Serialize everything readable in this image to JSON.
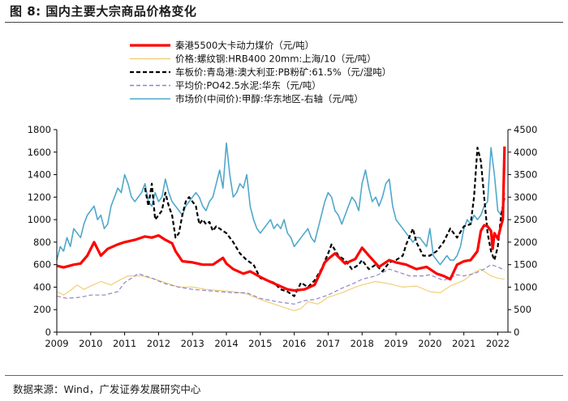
{
  "figure": {
    "title": "图 8:  国内主要大宗商品价格变化",
    "source": "数据来源：Wind，广发证券发展研究中心"
  },
  "chart_data": {
    "type": "line",
    "title": "国内主要大宗商品价格变化",
    "x_ticks": [
      "2009",
      "2010",
      "2011",
      "2012",
      "2013",
      "2014",
      "2015",
      "2016",
      "2017",
      "2018",
      "2019",
      "2020",
      "2021",
      "2022"
    ],
    "x_range": [
      2009.0,
      2022.3
    ],
    "y_left": {
      "range": [
        0,
        1800
      ],
      "ticks": [
        "0",
        "200",
        "400",
        "600",
        "800",
        "1000",
        "1200",
        "1400",
        "1600",
        "1800"
      ]
    },
    "y_right": {
      "range": [
        0,
        4500
      ],
      "ticks": [
        "0",
        "500",
        "1000",
        "1500",
        "2000",
        "2500",
        "3000",
        "3500",
        "4000",
        "4500"
      ]
    },
    "series": [
      {
        "name": "秦港5500大卡动力煤价（元/吨）",
        "color": "#ff0000",
        "style": "solid",
        "width": 3.2,
        "axis": "left",
        "x": [
          2009.0,
          2009.2,
          2009.5,
          2009.7,
          2009.9,
          2010.1,
          2010.3,
          2010.5,
          2010.8,
          2011.0,
          2011.3,
          2011.6,
          2011.8,
          2012.0,
          2012.2,
          2012.4,
          2012.5,
          2012.7,
          2013.0,
          2013.3,
          2013.6,
          2013.9,
          2014.0,
          2014.2,
          2014.5,
          2014.7,
          2015.0,
          2015.2,
          2015.5,
          2015.8,
          2016.0,
          2016.3,
          2016.6,
          2016.8,
          2016.9,
          2017.0,
          2017.2,
          2017.5,
          2017.8,
          2018.0,
          2018.2,
          2018.5,
          2018.8,
          2019.0,
          2019.3,
          2019.6,
          2019.9,
          2020.2,
          2020.4,
          2020.6,
          2020.8,
          2021.0,
          2021.2,
          2021.4,
          2021.5,
          2021.6,
          2021.7,
          2021.8,
          2021.85,
          2021.9,
          2022.0,
          2022.1,
          2022.15,
          2022.2
        ],
        "values": [
          590,
          575,
          600,
          610,
          680,
          800,
          680,
          740,
          780,
          800,
          820,
          850,
          840,
          860,
          820,
          790,
          720,
          630,
          620,
          600,
          600,
          660,
          610,
          560,
          520,
          540,
          490,
          460,
          420,
          380,
          370,
          380,
          420,
          550,
          620,
          650,
          700,
          610,
          650,
          750,
          680,
          580,
          640,
          620,
          600,
          560,
          580,
          520,
          500,
          470,
          600,
          630,
          640,
          720,
          900,
          950,
          940,
          900,
          740,
          880,
          830,
          950,
          1000,
          1650
        ]
      },
      {
        "name": "价格:螺纹钢:HRB400 20mm:上海/10（元/吨）",
        "color": "#f2cf7a",
        "style": "solid",
        "width": 1.2,
        "axis": "left",
        "x": [
          2009.0,
          2009.2,
          2009.4,
          2009.6,
          2009.8,
          2010.0,
          2010.3,
          2010.6,
          2010.9,
          2011.1,
          2011.5,
          2011.9,
          2012.2,
          2012.6,
          2013.0,
          2013.4,
          2013.8,
          2014.2,
          2014.6,
          2015.0,
          2015.5,
          2016.0,
          2016.2,
          2016.4,
          2016.7,
          2017.0,
          2017.4,
          2017.8,
          2018.0,
          2018.4,
          2018.8,
          2019.2,
          2019.6,
          2020.0,
          2020.3,
          2020.6,
          2021.0,
          2021.3,
          2021.5,
          2021.8,
          2022.0,
          2022.2
        ],
        "values": [
          360,
          330,
          370,
          420,
          380,
          410,
          450,
          420,
          470,
          500,
          500,
          470,
          440,
          400,
          400,
          380,
          370,
          360,
          340,
          290,
          240,
          190,
          210,
          270,
          250,
          310,
          350,
          400,
          420,
          450,
          430,
          400,
          410,
          360,
          350,
          410,
          460,
          530,
          560,
          500,
          480,
          470
        ]
      },
      {
        "name": "车板价:青岛港:澳大利亚:PB粉矿:61.5%（元/湿吨）",
        "color": "#000000",
        "style": "dash",
        "width": 2.2,
        "axis": "right",
        "x": [
          2011.6,
          2011.7,
          2011.8,
          2011.9,
          2012.0,
          2012.1,
          2012.2,
          2012.3,
          2012.4,
          2012.5,
          2012.6,
          2012.7,
          2012.8,
          2012.9,
          2013.0,
          2013.1,
          2013.2,
          2013.3,
          2013.4,
          2013.5,
          2013.6,
          2013.7,
          2013.8,
          2013.9,
          2014.0,
          2014.2,
          2014.4,
          2014.6,
          2014.8,
          2015.0,
          2015.2,
          2015.4,
          2015.6,
          2015.8,
          2016.0,
          2016.2,
          2016.4,
          2016.6,
          2016.8,
          2017.0,
          2017.1,
          2017.3,
          2017.5,
          2017.7,
          2017.9,
          2018.0,
          2018.2,
          2018.4,
          2018.6,
          2018.8,
          2019.0,
          2019.2,
          2019.3,
          2019.5,
          2019.6,
          2019.8,
          2020.0,
          2020.2,
          2020.4,
          2020.6,
          2020.8,
          2021.0,
          2021.2,
          2021.3,
          2021.4,
          2021.5,
          2021.6,
          2021.7,
          2021.8,
          2021.9,
          2022.0,
          2022.1,
          2022.2
        ],
        "values": [
          3200,
          2800,
          3300,
          2500,
          2600,
          2700,
          3100,
          2800,
          2600,
          2100,
          2200,
          2600,
          2900,
          3000,
          2900,
          2800,
          2400,
          2500,
          2400,
          2450,
          2250,
          2350,
          2300,
          2250,
          2200,
          2000,
          1750,
          1600,
          1500,
          1200,
          1150,
          1100,
          950,
          900,
          800,
          1100,
          1000,
          1150,
          1400,
          1750,
          1950,
          1700,
          1600,
          1400,
          1500,
          1600,
          1400,
          1500,
          1350,
          1550,
          1600,
          1700,
          1950,
          2300,
          2000,
          1700,
          1700,
          1800,
          2000,
          2300,
          2100,
          2350,
          2400,
          3000,
          4100,
          3800,
          3000,
          2200,
          1800,
          1600,
          1900,
          2600,
          3000
        ]
      },
      {
        "name": "平均价:PO42.5水泥:华东（元/吨）",
        "color": "#8f85c8",
        "style": "dash",
        "width": 1.2,
        "axis": "left",
        "x": [
          2009.0,
          2009.3,
          2009.7,
          2010.0,
          2010.4,
          2010.8,
          2011.0,
          2011.4,
          2011.8,
          2012.2,
          2012.6,
          2013.0,
          2013.4,
          2013.8,
          2014.2,
          2014.6,
          2015.0,
          2015.5,
          2016.0,
          2016.3,
          2016.6,
          2017.0,
          2017.4,
          2017.8,
          2018.0,
          2018.4,
          2018.8,
          2019.0,
          2019.4,
          2019.8,
          2020.0,
          2020.4,
          2020.8,
          2021.0,
          2021.3,
          2021.6,
          2021.8,
          2022.0,
          2022.2
        ],
        "values": [
          320,
          300,
          310,
          330,
          330,
          360,
          440,
          520,
          480,
          430,
          400,
          380,
          370,
          360,
          350,
          350,
          300,
          270,
          250,
          280,
          290,
          330,
          390,
          440,
          470,
          500,
          560,
          540,
          500,
          500,
          510,
          460,
          510,
          500,
          520,
          560,
          600,
          580,
          550
        ]
      },
      {
        "name": "市场价(中间价):甲醇:华东地区-右轴（元/吨）",
        "color": "#4fa8cb",
        "style": "solid",
        "width": 1.6,
        "axis": "right",
        "x": [
          2009.0,
          2009.1,
          2009.2,
          2009.3,
          2009.4,
          2009.5,
          2009.6,
          2009.7,
          2009.8,
          2009.9,
          2010.0,
          2010.1,
          2010.2,
          2010.3,
          2010.4,
          2010.5,
          2010.6,
          2010.7,
          2010.8,
          2010.9,
          2011.0,
          2011.1,
          2011.2,
          2011.3,
          2011.4,
          2011.5,
          2011.6,
          2011.7,
          2011.8,
          2011.9,
          2012.0,
          2012.1,
          2012.2,
          2012.3,
          2012.4,
          2012.5,
          2012.6,
          2012.7,
          2012.8,
          2012.9,
          2013.0,
          2013.1,
          2013.2,
          2013.3,
          2013.4,
          2013.5,
          2013.6,
          2013.7,
          2013.8,
          2013.9,
          2014.0,
          2014.1,
          2014.2,
          2014.3,
          2014.4,
          2014.5,
          2014.6,
          2014.7,
          2014.8,
          2014.9,
          2015.0,
          2015.1,
          2015.2,
          2015.3,
          2015.4,
          2015.5,
          2015.6,
          2015.7,
          2015.8,
          2015.9,
          2016.0,
          2016.1,
          2016.2,
          2016.3,
          2016.4,
          2016.5,
          2016.6,
          2016.7,
          2016.8,
          2016.9,
          2017.0,
          2017.1,
          2017.2,
          2017.3,
          2017.4,
          2017.5,
          2017.6,
          2017.7,
          2017.8,
          2017.9,
          2018.0,
          2018.1,
          2018.2,
          2018.3,
          2018.4,
          2018.5,
          2018.6,
          2018.7,
          2018.8,
          2018.9,
          2019.0,
          2019.1,
          2019.2,
          2019.3,
          2019.4,
          2019.5,
          2019.6,
          2019.7,
          2019.8,
          2019.9,
          2020.0,
          2020.1,
          2020.2,
          2020.3,
          2020.4,
          2020.5,
          2020.6,
          2020.7,
          2020.8,
          2020.9,
          2021.0,
          2021.1,
          2021.2,
          2021.3,
          2021.4,
          2021.5,
          2021.6,
          2021.7,
          2021.8,
          2021.9,
          2022.0,
          2022.1,
          2022.2
        ],
        "values": [
          1600,
          1900,
          1800,
          2100,
          1900,
          2300,
          2200,
          2100,
          2400,
          2600,
          2700,
          2800,
          2500,
          2600,
          2300,
          2400,
          2800,
          3000,
          3200,
          3100,
          3500,
          3300,
          3000,
          2900,
          3000,
          3100,
          3300,
          2900,
          2800,
          3100,
          2900,
          3000,
          3400,
          3100,
          2900,
          2800,
          2700,
          2600,
          2800,
          2900,
          3000,
          3100,
          3000,
          2800,
          2700,
          2900,
          3000,
          3300,
          3600,
          3200,
          4200,
          3500,
          3000,
          3100,
          3300,
          3200,
          3500,
          2800,
          2500,
          2300,
          2200,
          2300,
          2400,
          2500,
          2300,
          2400,
          2300,
          2500,
          2200,
          2100,
          1900,
          2000,
          2100,
          2200,
          2300,
          2100,
          2000,
          2300,
          2600,
          2900,
          3100,
          3000,
          2700,
          2600,
          2400,
          2600,
          2800,
          3000,
          2900,
          2700,
          3300,
          3600,
          3200,
          2900,
          3000,
          2800,
          3000,
          3300,
          3400,
          2800,
          2500,
          2400,
          2300,
          2200,
          2100,
          2000,
          2100,
          2100,
          2000,
          1900,
          2300,
          1700,
          1600,
          1500,
          1600,
          1700,
          1600,
          1600,
          1700,
          1900,
          2300,
          2500,
          2400,
          2600,
          2500,
          2600,
          2800,
          2900,
          4100,
          3500,
          2700,
          2600,
          3100
        ]
      }
    ]
  }
}
